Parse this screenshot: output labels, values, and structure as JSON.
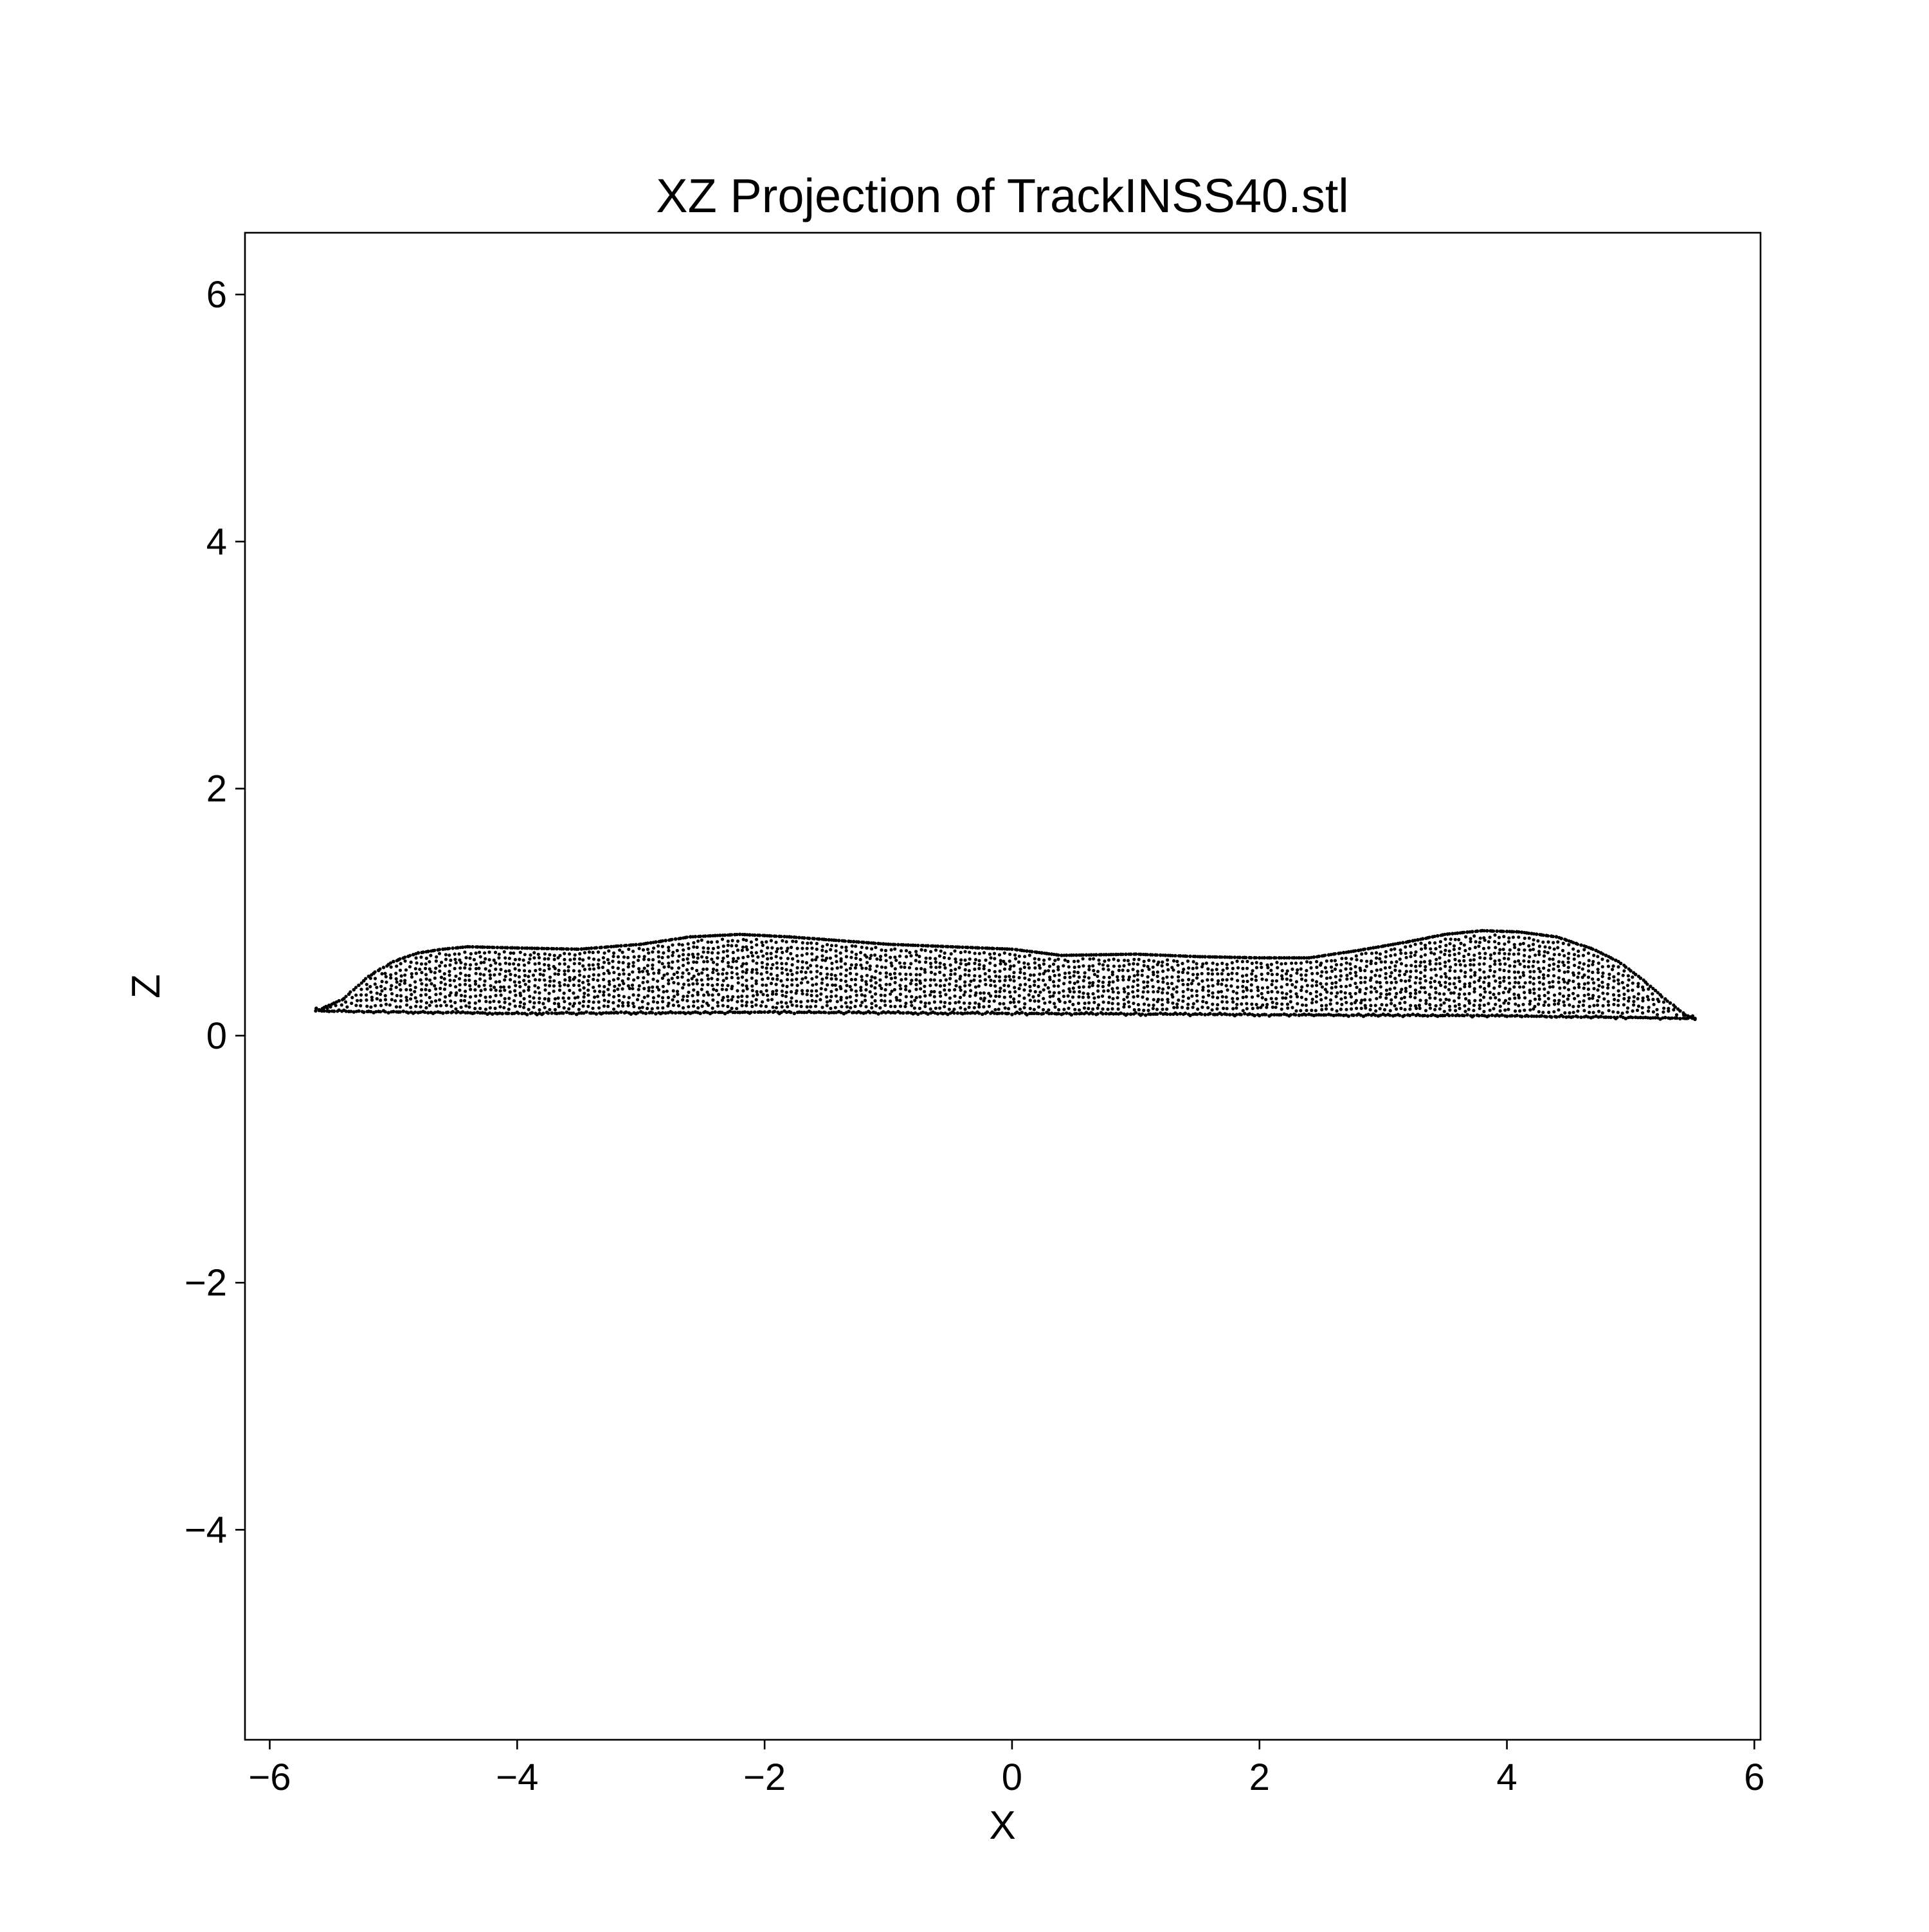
{
  "chart_data": {
    "type": "scatter",
    "title": "XZ Projection of TrackINSS40.stl",
    "xlabel": "X",
    "ylabel": "Z",
    "xlim": [
      -6.2,
      6.05
    ],
    "ylim": [
      -5.7,
      6.5
    ],
    "xticks": [
      -6,
      -4,
      -2,
      0,
      2,
      4,
      6
    ],
    "yticks": [
      -4,
      -2,
      0,
      2,
      4,
      6
    ],
    "xtick_labels": [
      "−6",
      "−4",
      "−2",
      "0",
      "2",
      "4",
      "6"
    ],
    "ytick_labels": [
      "−4",
      "−2",
      "0",
      "2",
      "4",
      "6"
    ],
    "grid": false,
    "legend": "none",
    "marker_color": "#000000",
    "series": [
      {
        "upper_profile": {
          "x": [
            -5.62,
            -5.4,
            -5.2,
            -5.0,
            -4.8,
            -4.6,
            -4.4,
            -4.0,
            -3.5,
            -3.0,
            -2.6,
            -2.2,
            -1.8,
            -1.4,
            -1.0,
            -0.5,
            0.0,
            0.4,
            1.0,
            1.5,
            2.0,
            2.4,
            2.8,
            3.2,
            3.5,
            3.8,
            4.1,
            4.4,
            4.7,
            4.9,
            5.1,
            5.3,
            5.45,
            5.52
          ],
          "z": [
            0.2,
            0.3,
            0.48,
            0.6,
            0.67,
            0.7,
            0.72,
            0.71,
            0.7,
            0.74,
            0.8,
            0.82,
            0.8,
            0.77,
            0.74,
            0.72,
            0.7,
            0.65,
            0.66,
            0.64,
            0.63,
            0.63,
            0.69,
            0.76,
            0.82,
            0.85,
            0.84,
            0.8,
            0.7,
            0.6,
            0.45,
            0.28,
            0.16,
            0.14
          ]
        },
        "lower_profile": {
          "x": [
            -5.62,
            -4.0,
            -2.0,
            0.0,
            2.0,
            4.0,
            5.52
          ],
          "z": [
            0.2,
            0.18,
            0.19,
            0.18,
            0.17,
            0.16,
            0.14
          ]
        }
      }
    ]
  }
}
